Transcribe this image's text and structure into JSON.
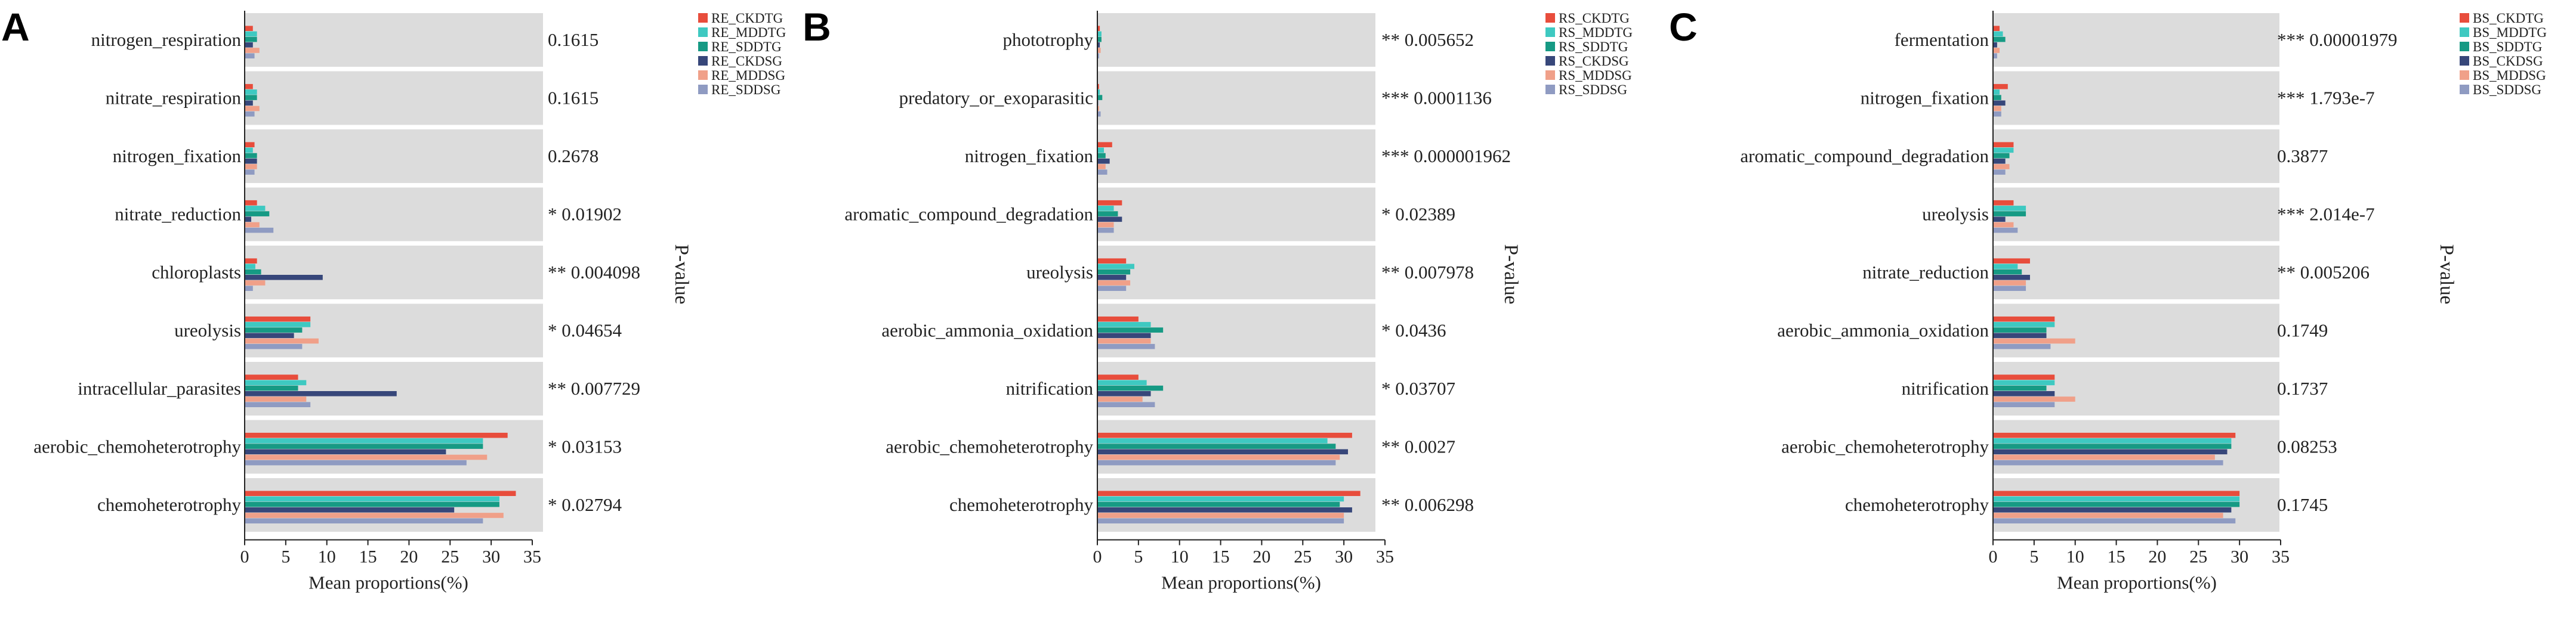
{
  "figure": {
    "colors": {
      "CKDTG": "#e84d3c",
      "MDDTG": "#3ec9c1",
      "SDDTG": "#169a84",
      "CKDSG": "#37477a",
      "MDDSG": "#f0a089",
      "SDDSG": "#8f9bc2",
      "band": "#dcdcdc"
    }
  },
  "chart_data": [
    {
      "type": "bar",
      "panel": "A",
      "xlabel": "Mean proportions(%)",
      "pvalue_label": "P-value",
      "xlim": [
        0,
        35
      ],
      "xticks": [
        "0",
        "5",
        "10",
        "15",
        "20",
        "25",
        "30",
        "35"
      ],
      "legend": [
        "RE_CKDTG",
        "RE_MDDTG",
        "RE_SDDTG",
        "RE_CKDSG",
        "RE_MDDSG",
        "RE_SDDSG"
      ],
      "categories": [
        "nitrogen_respiration",
        "nitrate_respiration",
        "nitrogen_fixation",
        "nitrate_reduction",
        "chloroplasts",
        "ureolysis",
        "intracellular_parasites",
        "aerobic_chemoheterotrophy",
        "chemoheterotrophy"
      ],
      "pvalues": [
        "0.1615",
        "0.1615",
        "0.2678",
        "* 0.01902",
        "** 0.004098",
        "* 0.04654",
        "** 0.007729",
        "* 0.03153",
        "* 0.02794"
      ],
      "series": [
        {
          "name": "RE_CKDTG",
          "values": [
            1.0,
            1.0,
            1.2,
            1.5,
            1.5,
            8.0,
            6.5,
            32.0,
            33.0
          ]
        },
        {
          "name": "RE_MDDTG",
          "values": [
            1.5,
            1.5,
            1.0,
            2.5,
            1.3,
            8.0,
            7.5,
            29.0,
            31.0
          ]
        },
        {
          "name": "RE_SDDTG",
          "values": [
            1.5,
            1.5,
            1.5,
            3.0,
            2.0,
            7.0,
            6.5,
            29.0,
            31.0
          ]
        },
        {
          "name": "RE_CKDSG",
          "values": [
            1.0,
            1.0,
            1.5,
            0.8,
            9.5,
            6.0,
            18.5,
            24.5,
            25.5
          ]
        },
        {
          "name": "RE_MDDSG",
          "values": [
            1.8,
            1.8,
            1.5,
            1.8,
            2.5,
            9.0,
            7.5,
            29.5,
            31.5
          ]
        },
        {
          "name": "RE_SDDSG",
          "values": [
            1.2,
            1.2,
            1.2,
            3.5,
            1.0,
            7.0,
            8.0,
            27.0,
            29.0
          ]
        }
      ]
    },
    {
      "type": "bar",
      "panel": "B",
      "xlabel": "Mean proportions(%)",
      "pvalue_label": "P-value",
      "xlim": [
        0,
        35
      ],
      "xticks": [
        "0",
        "5",
        "10",
        "15",
        "20",
        "25",
        "30",
        "35"
      ],
      "legend": [
        "RS_CKDTG",
        "RS_MDDTG",
        "RS_SDDTG",
        "RS_CKDSG",
        "RS_MDDSG",
        "RS_SDDSG"
      ],
      "categories": [
        "phototrophy",
        "predatory_or_exoparasitic",
        "nitrogen_fixation",
        "aromatic_compound_degradation",
        "ureolysis",
        "aerobic_ammonia_oxidation",
        "nitrification",
        "aerobic_chemoheterotrophy",
        "chemoheterotrophy"
      ],
      "pvalues": [
        "** 0.005652",
        "*** 0.0001136",
        "*** 0.000001962",
        "* 0.02389",
        "** 0.007978",
        "* 0.0436",
        "* 0.03707",
        "** 0.0027",
        "** 0.006298"
      ],
      "series": [
        {
          "name": "RS_CKDTG",
          "values": [
            0.3,
            0.2,
            1.8,
            3.0,
            3.5,
            5.0,
            5.0,
            31.0,
            32.0
          ]
        },
        {
          "name": "RS_MDDTG",
          "values": [
            0.5,
            0.3,
            0.8,
            2.0,
            4.5,
            6.5,
            6.0,
            28.0,
            30.0
          ]
        },
        {
          "name": "RS_SDDTG",
          "values": [
            0.5,
            0.6,
            1.0,
            2.5,
            4.0,
            8.0,
            8.0,
            29.0,
            29.5
          ]
        },
        {
          "name": "RS_CKDSG",
          "values": [
            0.3,
            0.1,
            1.5,
            3.0,
            3.5,
            6.5,
            6.5,
            30.5,
            31.0
          ]
        },
        {
          "name": "RS_MDDSG",
          "values": [
            0.4,
            0.2,
            1.0,
            2.0,
            4.0,
            6.5,
            5.5,
            29.5,
            30.0
          ]
        },
        {
          "name": "RS_SDDSG",
          "values": [
            0.2,
            0.4,
            1.2,
            2.0,
            3.5,
            7.0,
            7.0,
            29.0,
            30.0
          ]
        }
      ]
    },
    {
      "type": "bar",
      "panel": "C",
      "xlabel": "Mean proportions(%)",
      "pvalue_label": "P-value",
      "xlim": [
        0,
        35
      ],
      "xticks": [
        "0",
        "5",
        "10",
        "15",
        "20",
        "25",
        "30",
        "35"
      ],
      "legend": [
        "BS_CKDTG",
        "BS_MDDTG",
        "BS_SDDTG",
        "BS_CKDSG",
        "BS_MDDSG",
        "BS_SDDSG"
      ],
      "categories": [
        "fermentation",
        "nitrogen_fixation",
        "aromatic_compound_degradation",
        "ureolysis",
        "nitrate_reduction",
        "aerobic_ammonia_oxidation",
        "nitrification",
        "aerobic_chemoheterotrophy",
        "chemoheterotrophy"
      ],
      "pvalues": [
        "*** 0.00001979",
        "*** 1.793e-7",
        "0.3877",
        "*** 2.014e-7",
        "** 0.005206",
        "0.1749",
        "0.1737",
        "0.08253",
        "0.1745"
      ],
      "series": [
        {
          "name": "BS_CKDTG",
          "values": [
            0.8,
            1.8,
            2.5,
            2.5,
            4.5,
            7.5,
            7.5,
            29.5,
            30.0
          ]
        },
        {
          "name": "BS_MDDTG",
          "values": [
            1.2,
            0.8,
            2.5,
            4.0,
            3.0,
            7.5,
            7.5,
            29.0,
            30.0
          ]
        },
        {
          "name": "BS_SDDTG",
          "values": [
            1.5,
            1.0,
            2.0,
            4.0,
            3.5,
            6.5,
            6.5,
            29.0,
            30.0
          ]
        },
        {
          "name": "BS_CKDSG",
          "values": [
            0.5,
            1.5,
            1.5,
            1.5,
            4.5,
            6.5,
            7.5,
            28.5,
            29.0
          ]
        },
        {
          "name": "BS_MDDSG",
          "values": [
            0.8,
            1.0,
            2.0,
            2.5,
            4.0,
            10.0,
            10.0,
            27.0,
            28.0
          ]
        },
        {
          "name": "BS_SDDSG",
          "values": [
            0.5,
            1.0,
            1.5,
            3.0,
            4.0,
            7.0,
            7.5,
            28.0,
            29.5
          ]
        }
      ]
    }
  ]
}
